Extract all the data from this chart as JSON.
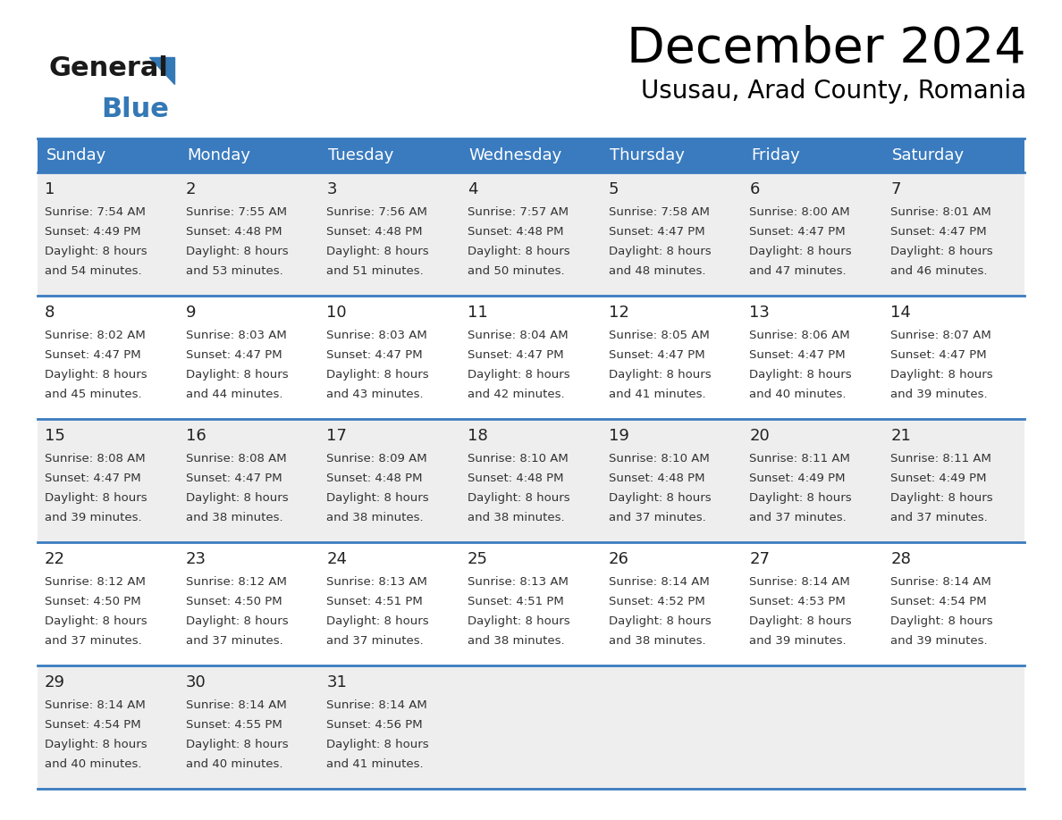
{
  "title": "December 2024",
  "subtitle": "Ususau, Arad County, Romania",
  "header_color": "#3a7bbf",
  "header_text_color": "#ffffff",
  "cell_bg_even": "#eeeeee",
  "cell_bg_odd": "#ffffff",
  "day_headers": [
    "Sunday",
    "Monday",
    "Tuesday",
    "Wednesday",
    "Thursday",
    "Friday",
    "Saturday"
  ],
  "weeks": [
    [
      {
        "day": 1,
        "sunrise": "7:54 AM",
        "sunset": "4:49 PM",
        "daylight": "8 hours and 54 minutes."
      },
      {
        "day": 2,
        "sunrise": "7:55 AM",
        "sunset": "4:48 PM",
        "daylight": "8 hours and 53 minutes."
      },
      {
        "day": 3,
        "sunrise": "7:56 AM",
        "sunset": "4:48 PM",
        "daylight": "8 hours and 51 minutes."
      },
      {
        "day": 4,
        "sunrise": "7:57 AM",
        "sunset": "4:48 PM",
        "daylight": "8 hours and 50 minutes."
      },
      {
        "day": 5,
        "sunrise": "7:58 AM",
        "sunset": "4:47 PM",
        "daylight": "8 hours and 48 minutes."
      },
      {
        "day": 6,
        "sunrise": "8:00 AM",
        "sunset": "4:47 PM",
        "daylight": "8 hours and 47 minutes."
      },
      {
        "day": 7,
        "sunrise": "8:01 AM",
        "sunset": "4:47 PM",
        "daylight": "8 hours and 46 minutes."
      }
    ],
    [
      {
        "day": 8,
        "sunrise": "8:02 AM",
        "sunset": "4:47 PM",
        "daylight": "8 hours and 45 minutes."
      },
      {
        "day": 9,
        "sunrise": "8:03 AM",
        "sunset": "4:47 PM",
        "daylight": "8 hours and 44 minutes."
      },
      {
        "day": 10,
        "sunrise": "8:03 AM",
        "sunset": "4:47 PM",
        "daylight": "8 hours and 43 minutes."
      },
      {
        "day": 11,
        "sunrise": "8:04 AM",
        "sunset": "4:47 PM",
        "daylight": "8 hours and 42 minutes."
      },
      {
        "day": 12,
        "sunrise": "8:05 AM",
        "sunset": "4:47 PM",
        "daylight": "8 hours and 41 minutes."
      },
      {
        "day": 13,
        "sunrise": "8:06 AM",
        "sunset": "4:47 PM",
        "daylight": "8 hours and 40 minutes."
      },
      {
        "day": 14,
        "sunrise": "8:07 AM",
        "sunset": "4:47 PM",
        "daylight": "8 hours and 39 minutes."
      }
    ],
    [
      {
        "day": 15,
        "sunrise": "8:08 AM",
        "sunset": "4:47 PM",
        "daylight": "8 hours and 39 minutes."
      },
      {
        "day": 16,
        "sunrise": "8:08 AM",
        "sunset": "4:47 PM",
        "daylight": "8 hours and 38 minutes."
      },
      {
        "day": 17,
        "sunrise": "8:09 AM",
        "sunset": "4:48 PM",
        "daylight": "8 hours and 38 minutes."
      },
      {
        "day": 18,
        "sunrise": "8:10 AM",
        "sunset": "4:48 PM",
        "daylight": "8 hours and 38 minutes."
      },
      {
        "day": 19,
        "sunrise": "8:10 AM",
        "sunset": "4:48 PM",
        "daylight": "8 hours and 37 minutes."
      },
      {
        "day": 20,
        "sunrise": "8:11 AM",
        "sunset": "4:49 PM",
        "daylight": "8 hours and 37 minutes."
      },
      {
        "day": 21,
        "sunrise": "8:11 AM",
        "sunset": "4:49 PM",
        "daylight": "8 hours and 37 minutes."
      }
    ],
    [
      {
        "day": 22,
        "sunrise": "8:12 AM",
        "sunset": "4:50 PM",
        "daylight": "8 hours and 37 minutes."
      },
      {
        "day": 23,
        "sunrise": "8:12 AM",
        "sunset": "4:50 PM",
        "daylight": "8 hours and 37 minutes."
      },
      {
        "day": 24,
        "sunrise": "8:13 AM",
        "sunset": "4:51 PM",
        "daylight": "8 hours and 37 minutes."
      },
      {
        "day": 25,
        "sunrise": "8:13 AM",
        "sunset": "4:51 PM",
        "daylight": "8 hours and 38 minutes."
      },
      {
        "day": 26,
        "sunrise": "8:14 AM",
        "sunset": "4:52 PM",
        "daylight": "8 hours and 38 minutes."
      },
      {
        "day": 27,
        "sunrise": "8:14 AM",
        "sunset": "4:53 PM",
        "daylight": "8 hours and 39 minutes."
      },
      {
        "day": 28,
        "sunrise": "8:14 AM",
        "sunset": "4:54 PM",
        "daylight": "8 hours and 39 minutes."
      }
    ],
    [
      {
        "day": 29,
        "sunrise": "8:14 AM",
        "sunset": "4:54 PM",
        "daylight": "8 hours and 40 minutes."
      },
      {
        "day": 30,
        "sunrise": "8:14 AM",
        "sunset": "4:55 PM",
        "daylight": "8 hours and 40 minutes."
      },
      {
        "day": 31,
        "sunrise": "8:14 AM",
        "sunset": "4:56 PM",
        "daylight": "8 hours and 41 minutes."
      },
      null,
      null,
      null,
      null
    ]
  ],
  "logo_general_color": "#1a1a1a",
  "logo_blue_color": "#3478b5",
  "separator_color": "#3a7bbf",
  "fig_width": 11.88,
  "fig_height": 9.18,
  "dpi": 100
}
